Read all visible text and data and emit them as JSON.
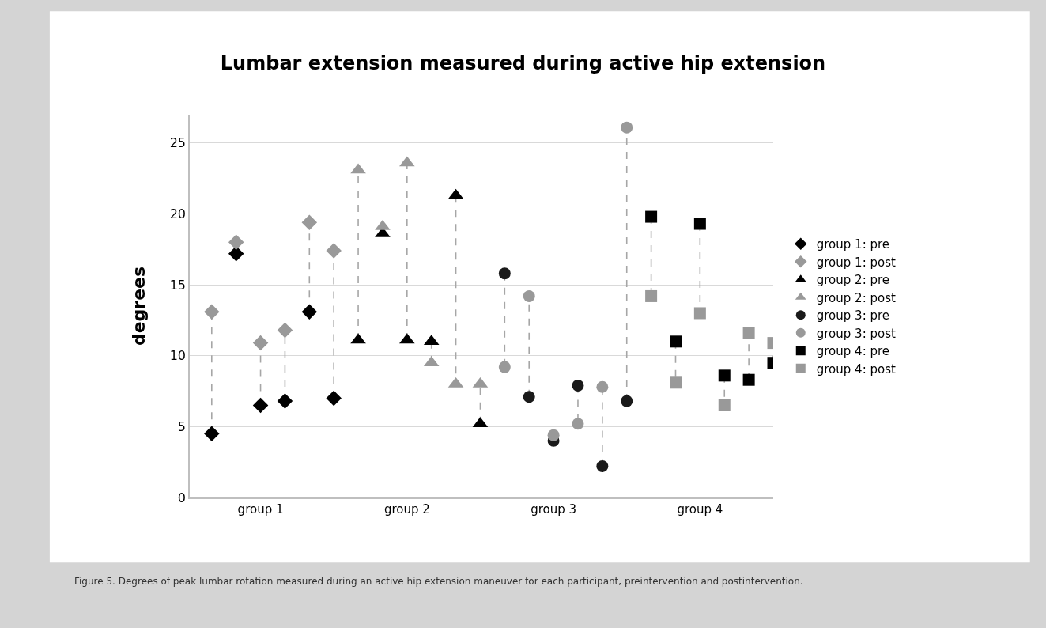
{
  "chart_data": {
    "type": "scatter",
    "title": "Lumbar extension measured during active hip extension",
    "ylabel": "degrees",
    "annotations": [
      "Figure 5. Degrees of peak lumbar rotation measured during an active hip extension maneuver for each participant, preintervention and postintervention."
    ],
    "categories": [
      null,
      null,
      "group 1",
      null,
      null,
      null,
      null,
      null,
      "group 2",
      null,
      null,
      null,
      null,
      null,
      "group 3",
      null,
      null,
      null,
      null,
      null,
      "group 4",
      null,
      null,
      null
    ],
    "ylim": [
      0,
      27
    ],
    "yticks": [
      0,
      5,
      10,
      15,
      20,
      25
    ],
    "grid": "y",
    "legend": "right",
    "line_style": "dashed",
    "series": [
      {
        "name": "group 1: pre",
        "color": "#000000",
        "marker": "diamond",
        "values": [
          4.5,
          17.2,
          6.5,
          6.8,
          13.1,
          7.0,
          null,
          null,
          null,
          null,
          null,
          null,
          null,
          null,
          null,
          null,
          null,
          null,
          null,
          null,
          null,
          null,
          null,
          null
        ]
      },
      {
        "name": "group 1: post",
        "color": "#999999",
        "marker": "diamond",
        "values": [
          13.1,
          18.0,
          10.9,
          11.8,
          19.4,
          17.4,
          null,
          null,
          null,
          null,
          null,
          null,
          null,
          null,
          null,
          null,
          null,
          null,
          null,
          null,
          null,
          null,
          null,
          null
        ]
      },
      {
        "name": "group 2: pre",
        "color": "#000000",
        "marker": "triangle",
        "values": [
          null,
          null,
          null,
          null,
          null,
          null,
          11.1,
          18.6,
          11.1,
          11.0,
          21.3,
          5.2,
          null,
          null,
          null,
          null,
          null,
          null,
          null,
          null,
          null,
          null,
          null,
          null
        ]
      },
      {
        "name": "group 2: post",
        "color": "#999999",
        "marker": "triangle",
        "values": [
          null,
          null,
          null,
          null,
          null,
          null,
          23.1,
          19.1,
          23.6,
          9.5,
          8.0,
          8.0,
          null,
          null,
          null,
          null,
          null,
          null,
          null,
          null,
          null,
          null,
          null,
          null
        ]
      },
      {
        "name": "group 3: pre",
        "color": "#1a1a1a",
        "marker": "circle",
        "values": [
          null,
          null,
          null,
          null,
          null,
          null,
          null,
          null,
          null,
          null,
          null,
          null,
          15.8,
          7.1,
          4.0,
          7.9,
          2.2,
          6.8,
          null,
          null,
          null,
          null,
          null,
          null
        ]
      },
      {
        "name": "group 3: post",
        "color": "#999999",
        "marker": "circle",
        "values": [
          null,
          null,
          null,
          null,
          null,
          null,
          null,
          null,
          null,
          null,
          null,
          null,
          9.2,
          14.2,
          4.4,
          5.2,
          7.8,
          26.1,
          null,
          null,
          null,
          null,
          null,
          null
        ]
      },
      {
        "name": "group 4: pre",
        "color": "#000000",
        "marker": "square",
        "values": [
          null,
          null,
          null,
          null,
          null,
          null,
          null,
          null,
          null,
          null,
          null,
          null,
          null,
          null,
          null,
          null,
          null,
          null,
          19.8,
          11.0,
          19.3,
          8.6,
          8.3,
          9.5
        ]
      },
      {
        "name": "group 4: post",
        "color": "#999999",
        "marker": "square",
        "values": [
          null,
          null,
          null,
          null,
          null,
          null,
          null,
          null,
          null,
          null,
          null,
          null,
          null,
          null,
          null,
          null,
          null,
          null,
          14.2,
          8.1,
          13.0,
          6.5,
          11.6,
          10.9
        ]
      }
    ]
  }
}
